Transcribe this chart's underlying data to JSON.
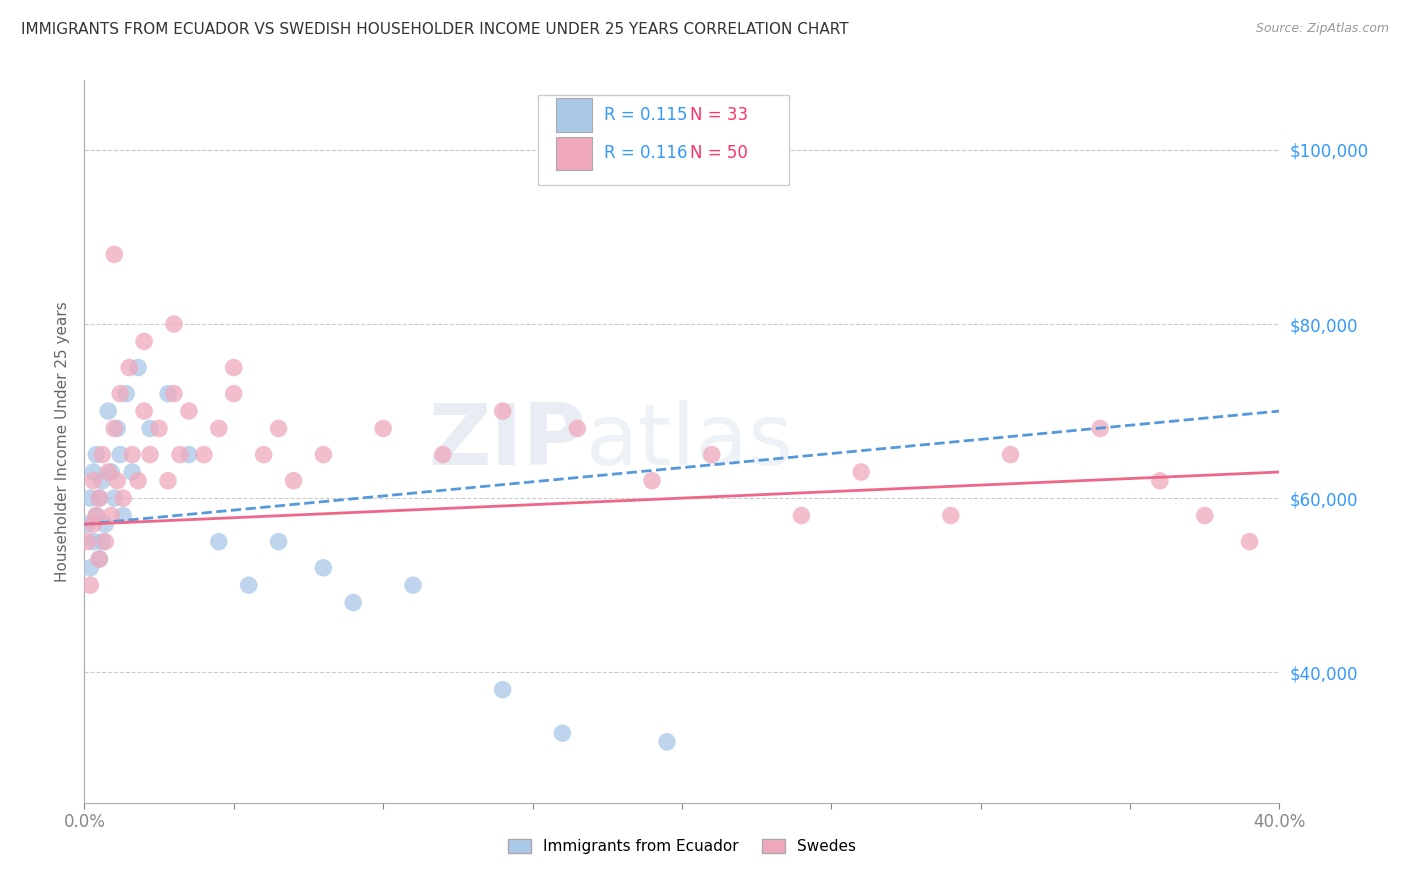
{
  "title": "IMMIGRANTS FROM ECUADOR VS SWEDISH HOUSEHOLDER INCOME UNDER 25 YEARS CORRELATION CHART",
  "source": "Source: ZipAtlas.com",
  "ylabel": "Householder Income Under 25 years",
  "watermark": "ZIPAtlas",
  "series1_label": "Immigrants from Ecuador",
  "series1_color": "#aac8e8",
  "series1_R": "0.115",
  "series1_N": "33",
  "series2_label": "Swedes",
  "series2_color": "#f0a8bc",
  "series2_R": "0.116",
  "series2_N": "50",
  "right_yticks": [
    40000,
    60000,
    80000,
    100000
  ],
  "right_ytick_labels": [
    "$40,000",
    "$60,000",
    "$80,000",
    "$100,000"
  ],
  "xmin": 0.0,
  "xmax": 0.4,
  "ymin": 25000,
  "ymax": 108000,
  "series1_x": [
    0.001,
    0.002,
    0.002,
    0.003,
    0.003,
    0.004,
    0.004,
    0.005,
    0.005,
    0.006,
    0.006,
    0.007,
    0.008,
    0.009,
    0.01,
    0.011,
    0.012,
    0.013,
    0.014,
    0.016,
    0.018,
    0.022,
    0.028,
    0.035,
    0.045,
    0.055,
    0.065,
    0.08,
    0.09,
    0.11,
    0.14,
    0.16,
    0.195
  ],
  "series1_y": [
    57000,
    52000,
    60000,
    55000,
    63000,
    58000,
    65000,
    53000,
    60000,
    55000,
    62000,
    57000,
    70000,
    63000,
    60000,
    68000,
    65000,
    58000,
    72000,
    63000,
    75000,
    68000,
    72000,
    65000,
    55000,
    50000,
    55000,
    52000,
    48000,
    50000,
    38000,
    33000,
    32000
  ],
  "series2_x": [
    0.001,
    0.002,
    0.003,
    0.003,
    0.004,
    0.005,
    0.005,
    0.006,
    0.007,
    0.008,
    0.009,
    0.01,
    0.011,
    0.012,
    0.013,
    0.015,
    0.016,
    0.018,
    0.02,
    0.022,
    0.025,
    0.028,
    0.03,
    0.032,
    0.035,
    0.04,
    0.045,
    0.05,
    0.06,
    0.065,
    0.07,
    0.08,
    0.1,
    0.12,
    0.14,
    0.165,
    0.19,
    0.21,
    0.24,
    0.26,
    0.29,
    0.31,
    0.34,
    0.36,
    0.375,
    0.39,
    0.01,
    0.02,
    0.03,
    0.05
  ],
  "series2_y": [
    55000,
    50000,
    57000,
    62000,
    58000,
    53000,
    60000,
    65000,
    55000,
    63000,
    58000,
    68000,
    62000,
    72000,
    60000,
    75000,
    65000,
    62000,
    70000,
    65000,
    68000,
    62000,
    72000,
    65000,
    70000,
    65000,
    68000,
    72000,
    65000,
    68000,
    62000,
    65000,
    68000,
    65000,
    70000,
    68000,
    62000,
    65000,
    58000,
    63000,
    58000,
    65000,
    68000,
    62000,
    58000,
    55000,
    88000,
    78000,
    80000,
    75000
  ],
  "trend1_color": "#5599dd",
  "trend2_color": "#ee6688",
  "bg_color": "#ffffff",
  "grid_color": "#cccccc",
  "title_color": "#333333",
  "right_label_color": "#3399ff",
  "legend_R_color": "#3399ff",
  "legend_N_color": "#ff3366"
}
